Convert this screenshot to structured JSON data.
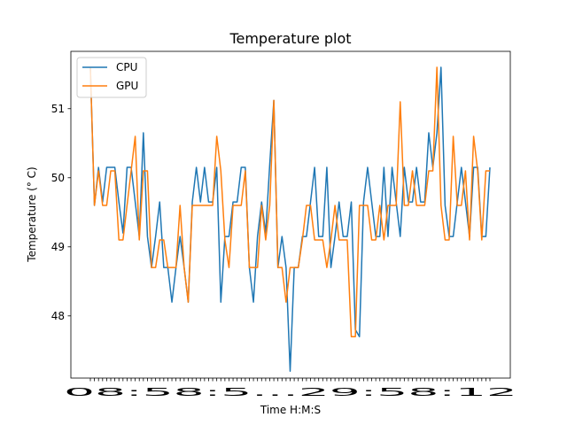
{
  "chart_data": {
    "type": "line",
    "title": "Temperature plot",
    "xlabel": "Time H:M:S",
    "ylabel": "Temperature ($^\\circ$C)",
    "ylabel_display": "Temperature (° C)",
    "x_tick_label_display": "08:58:5...29:58:12",
    "ylim": [
      47.1,
      51.83
    ],
    "yticks": [
      48,
      49,
      50,
      51
    ],
    "legend_position": "upper-left",
    "grid": false,
    "series": [
      {
        "name": "CPU",
        "color": "#1f77b4",
        "values": [
          51.6,
          49.6,
          50.15,
          49.65,
          50.15,
          50.15,
          50.15,
          49.65,
          49.2,
          50.15,
          50.15,
          49.65,
          49.15,
          50.65,
          49.15,
          48.7,
          49.15,
          49.65,
          48.7,
          48.7,
          48.2,
          48.7,
          49.15,
          48.7,
          48.2,
          49.65,
          50.15,
          49.65,
          50.15,
          49.65,
          49.65,
          50.15,
          48.2,
          49.15,
          49.15,
          49.65,
          49.65,
          50.15,
          50.15,
          48.7,
          48.2,
          49.15,
          49.65,
          49.2,
          50.2,
          51.12,
          48.7,
          49.15,
          48.7,
          47.2,
          48.7,
          48.7,
          49.15,
          49.15,
          49.65,
          50.15,
          49.15,
          49.15,
          50.15,
          48.7,
          49.15,
          49.65,
          49.15,
          49.15,
          49.65,
          47.8,
          47.7,
          49.65,
          50.15,
          49.65,
          49.15,
          49.15,
          50.15,
          49.15,
          50.15,
          49.65,
          49.15,
          50.15,
          49.65,
          49.65,
          50.15,
          49.65,
          49.65,
          50.65,
          50.15,
          50.65,
          51.6,
          49.6,
          49.15,
          49.15,
          49.65,
          50.15,
          49.65,
          49.15,
          50.15,
          50.15,
          49.15,
          49.15,
          50.15
        ]
      },
      {
        "name": "GPU",
        "color": "#ff7f0e",
        "values": [
          51.6,
          49.6,
          50.1,
          49.6,
          49.6,
          50.1,
          50.1,
          49.1,
          49.1,
          49.6,
          50.1,
          50.6,
          49.1,
          50.1,
          50.1,
          48.7,
          48.7,
          49.1,
          49.1,
          48.7,
          48.7,
          48.7,
          49.6,
          48.7,
          48.2,
          49.6,
          49.6,
          49.6,
          49.6,
          49.6,
          49.6,
          50.6,
          50.1,
          49.1,
          48.7,
          49.6,
          49.6,
          49.6,
          50.1,
          48.7,
          48.7,
          48.7,
          49.6,
          49.1,
          49.6,
          51.12,
          48.7,
          48.7,
          48.2,
          48.7,
          48.7,
          48.7,
          49.1,
          49.6,
          49.6,
          49.1,
          49.1,
          49.1,
          48.7,
          49.1,
          49.6,
          49.1,
          49.1,
          49.1,
          47.7,
          47.7,
          49.6,
          49.6,
          49.6,
          49.1,
          49.1,
          49.6,
          49.1,
          49.6,
          49.6,
          49.6,
          51.1,
          49.6,
          49.6,
          50.1,
          49.6,
          49.6,
          49.6,
          50.1,
          50.1,
          51.6,
          49.6,
          49.1,
          49.1,
          50.6,
          49.6,
          49.6,
          50.1,
          49.1,
          50.6,
          50.1,
          49.1,
          50.1,
          50.1
        ]
      }
    ]
  }
}
